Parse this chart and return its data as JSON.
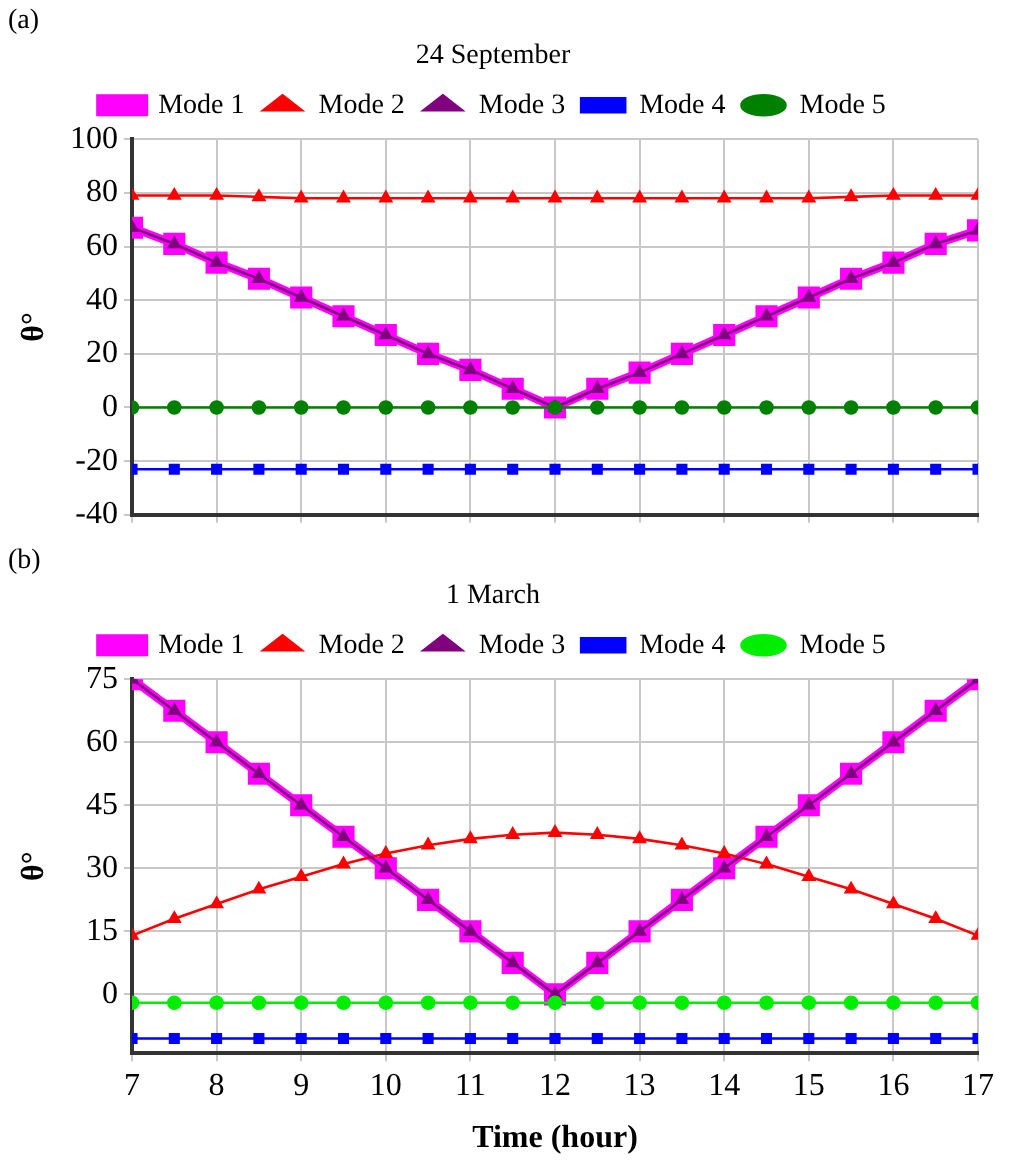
{
  "chart_data": [
    {
      "type": "line",
      "title": "(a)",
      "ylabel": "θ°",
      "legend_title": "24 September",
      "legend": "top",
      "grid": true,
      "line_style": "solid",
      "tick_labels": "y",
      "x": [
        7,
        7.5,
        8,
        8.5,
        9,
        9.5,
        10,
        10.5,
        11,
        11.5,
        12,
        12.5,
        13,
        13.5,
        14,
        14.5,
        15,
        15.5,
        16,
        16.5,
        17
      ],
      "xlim": [
        7,
        17
      ],
      "xticks": [
        7,
        8,
        9,
        10,
        11,
        12,
        13,
        14,
        15,
        16,
        17
      ],
      "ylim": [
        -40,
        100
      ],
      "yticks": [
        -40,
        -20,
        0,
        20,
        40,
        60,
        80,
        100
      ],
      "series": [
        {
          "name": "Mode 1",
          "color": "#ff00ff",
          "marker": "square",
          "values": [
            67,
            61,
            54,
            48,
            41,
            34,
            27,
            20,
            14,
            7,
            0,
            7,
            13,
            20,
            27,
            34,
            41,
            48,
            54,
            61,
            66
          ]
        },
        {
          "name": "Mode 2",
          "color": "#ff0000",
          "marker": "triangle",
          "values": [
            79,
            79,
            79,
            78.5,
            78,
            78,
            78,
            78,
            78,
            78,
            78,
            78,
            78,
            78,
            78,
            78,
            78,
            78.5,
            79,
            79,
            79
          ]
        },
        {
          "name": "Mode 3",
          "color": "#800080",
          "marker": "triangle",
          "values": [
            67,
            61,
            54,
            48,
            41,
            34,
            27,
            20,
            14,
            7,
            0,
            7,
            13,
            20,
            27,
            34,
            41,
            48,
            54,
            61,
            66
          ]
        },
        {
          "name": "Mode 4",
          "color": "#0000ff",
          "marker": "square",
          "values": [
            -23,
            -23,
            -23,
            -23,
            -23,
            -23,
            -23,
            -23,
            -23,
            -23,
            -23,
            -23,
            -23,
            -23,
            -23,
            -23,
            -23,
            -23,
            -23,
            -23,
            -23
          ]
        },
        {
          "name": "Mode 5",
          "color": "#008000",
          "marker": "circle",
          "values": [
            0,
            0,
            0,
            0,
            0,
            0,
            0,
            0,
            0,
            0,
            0,
            0,
            0,
            0,
            0,
            0,
            0,
            0,
            0,
            0,
            0
          ]
        }
      ]
    },
    {
      "type": "line",
      "title": "(b)",
      "xlabel": "Time (hour)",
      "ylabel": "θ°",
      "legend_title": "1 March",
      "legend": "top",
      "grid": true,
      "line_style": "solid",
      "x": [
        7,
        7.5,
        8,
        8.5,
        9,
        9.5,
        10,
        10.5,
        11,
        11.5,
        12,
        12.5,
        13,
        13.5,
        14,
        14.5,
        15,
        15.5,
        16,
        16.5,
        17
      ],
      "xlim": [
        7,
        17
      ],
      "xticks": [
        7,
        8,
        9,
        10,
        11,
        12,
        13,
        14,
        15,
        16,
        17
      ],
      "ylim": [
        -14,
        75
      ],
      "yticks": [
        0,
        15,
        30,
        45,
        60,
        75
      ],
      "series": [
        {
          "name": "Mode 1",
          "color": "#ff00ff",
          "marker": "square",
          "values": [
            75,
            67.5,
            60,
            52.5,
            45,
            37.5,
            30,
            22.5,
            15,
            7.5,
            0,
            7.5,
            15,
            22.5,
            30,
            37.5,
            45,
            52.5,
            60,
            67.5,
            75
          ]
        },
        {
          "name": "Mode 2",
          "color": "#ff0000",
          "marker": "triangle",
          "values": [
            14,
            18,
            21.5,
            25,
            28,
            31,
            33.5,
            35.5,
            37,
            38,
            38.5,
            38,
            37,
            35.5,
            33.5,
            31,
            28,
            25,
            21.5,
            18,
            14
          ]
        },
        {
          "name": "Mode 3",
          "color": "#800080",
          "marker": "triangle",
          "values": [
            75,
            67.5,
            60,
            52.5,
            45,
            37.5,
            30,
            22.5,
            15,
            7.5,
            0,
            7.5,
            15,
            22.5,
            30,
            37.5,
            45,
            52.5,
            60,
            67.5,
            75
          ]
        },
        {
          "name": "Mode 4",
          "color": "#0000ff",
          "marker": "square",
          "values": [
            -10.5,
            -10.5,
            -10.5,
            -10.5,
            -10.5,
            -10.5,
            -10.5,
            -10.5,
            -10.5,
            -10.5,
            -10.5,
            -10.5,
            -10.5,
            -10.5,
            -10.5,
            -10.5,
            -10.5,
            -10.5,
            -10.5,
            -10.5,
            -10.5
          ]
        },
        {
          "name": "Mode 5",
          "color": "#00ee00",
          "marker": "circle",
          "values": [
            -2,
            -2,
            -2,
            -2,
            -2,
            -2,
            -2,
            -2,
            -2,
            -2,
            -2,
            -2,
            -2,
            -2,
            -2,
            -2,
            -2,
            -2,
            -2,
            -2,
            -2
          ]
        }
      ]
    }
  ]
}
